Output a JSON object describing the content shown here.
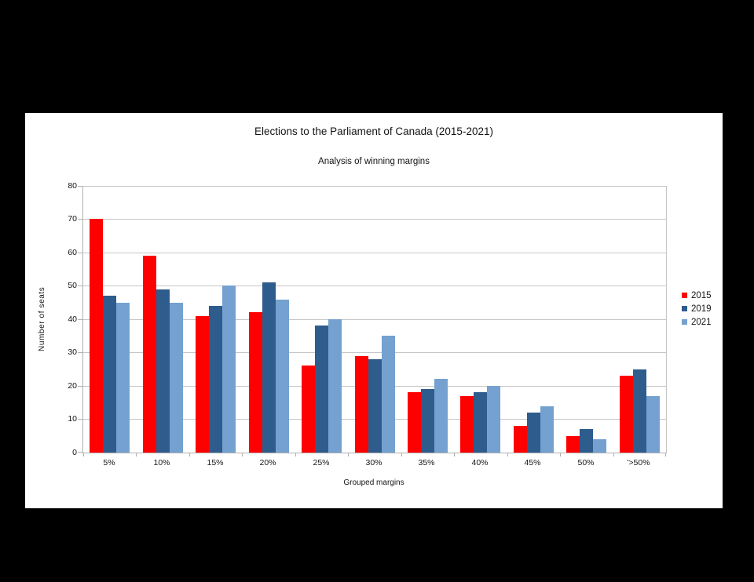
{
  "page": {
    "background_color": "#000000",
    "card_background_color": "#ffffff"
  },
  "chart_data": {
    "type": "bar",
    "title": "Elections to the Parliament of Canada (2015-2021)",
    "subtitle": "Analysis of winning margins",
    "xlabel": "Grouped margins",
    "ylabel": "Number of seats",
    "categories": [
      "5%",
      "10%",
      "15%",
      "20%",
      "25%",
      "30%",
      "35%",
      "40%",
      "45%",
      "50%",
      "'>50%"
    ],
    "series": [
      {
        "name": "2015",
        "color": "#ff0000",
        "values": [
          70,
          59,
          41,
          42,
          26,
          29,
          18,
          17,
          8,
          5,
          23
        ]
      },
      {
        "name": "2019",
        "color": "#2e5c8c",
        "values": [
          47,
          49,
          44,
          51,
          38,
          28,
          19,
          18,
          12,
          7,
          25
        ]
      },
      {
        "name": "2021",
        "color": "#74a1d0",
        "values": [
          45,
          45,
          50,
          46,
          40,
          35,
          22,
          20,
          14,
          4,
          17
        ]
      }
    ],
    "ylim": [
      0,
      80
    ],
    "ytick_interval": 10,
    "grid": true,
    "legend_position": "right",
    "colors": {
      "gridline": "#c6c6c6",
      "axis": "#b0b0b0",
      "text": "#141414"
    }
  }
}
